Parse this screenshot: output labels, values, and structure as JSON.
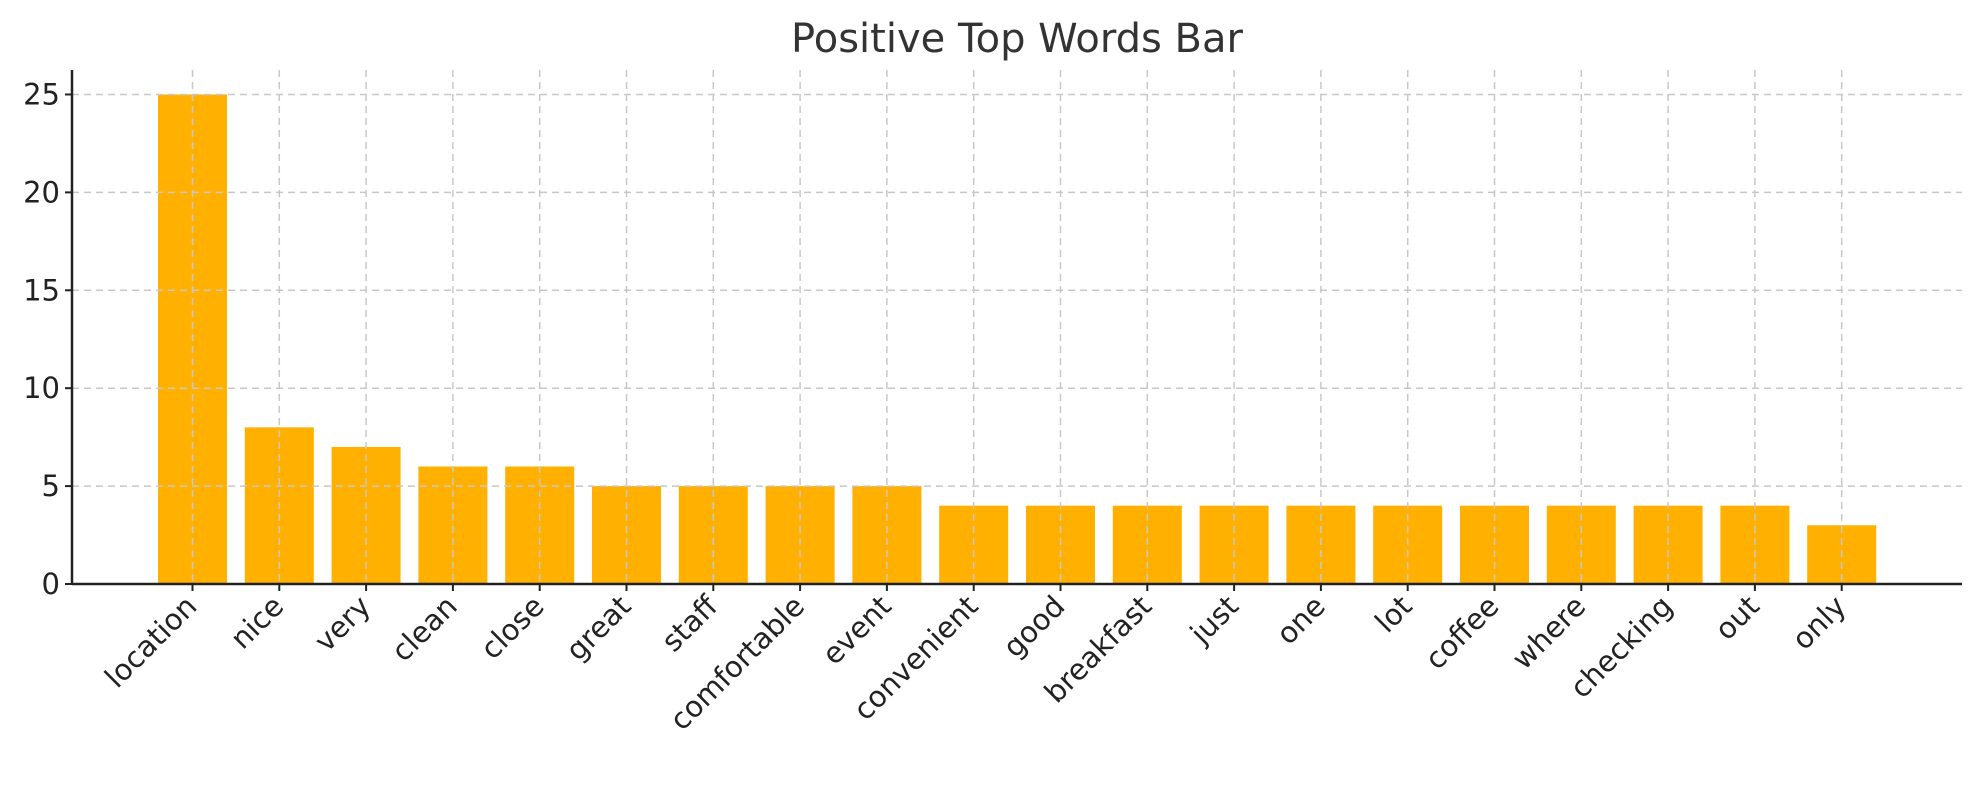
{
  "chart_data": {
    "type": "bar",
    "title": "Positive Top Words Bar",
    "xlabel": "",
    "ylabel": "",
    "categories": [
      "location",
      "nice",
      "very",
      "clean",
      "close",
      "great",
      "staff",
      "comfortable",
      "event",
      "convenient",
      "good",
      "breakfast",
      "just",
      "one",
      "lot",
      "coffee",
      "where",
      "checking",
      "out",
      "only"
    ],
    "values": [
      25,
      8,
      7,
      6,
      6,
      5,
      5,
      5,
      5,
      4,
      4,
      4,
      4,
      4,
      4,
      4,
      4,
      4,
      4,
      3
    ],
    "ylim": [
      0,
      26.25
    ],
    "yticks": [
      0,
      5,
      10,
      15,
      20,
      25
    ],
    "grid": true,
    "bar_color": "#FFB000",
    "legend": "none"
  }
}
